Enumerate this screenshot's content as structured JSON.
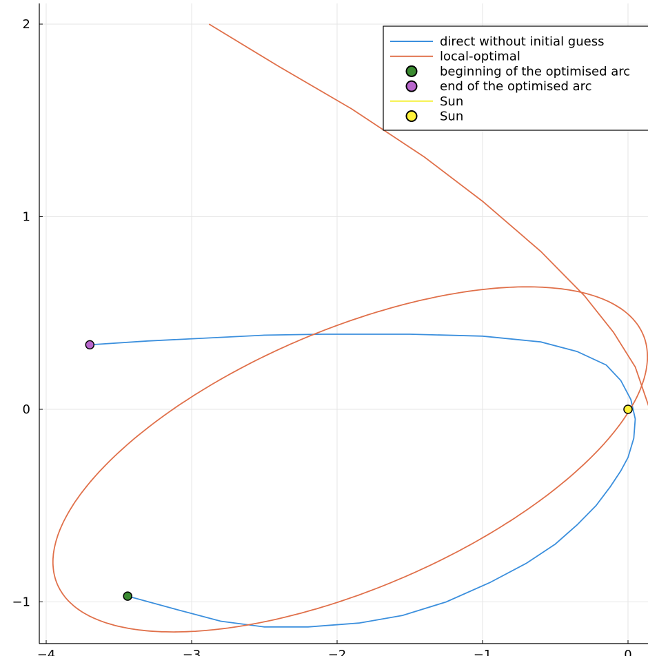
{
  "chart_data": {
    "type": "line",
    "title": "",
    "xlabel": "",
    "ylabel": "",
    "xlim": [
      -4.05,
      0.15
    ],
    "ylim": [
      -1.22,
      2.1
    ],
    "grid": true,
    "legend_position": "top-right",
    "x_ticks": [
      {
        "value": -4,
        "label": "−4"
      },
      {
        "value": -3,
        "label": "−3"
      },
      {
        "value": -2,
        "label": "−2"
      },
      {
        "value": -1,
        "label": "−1"
      },
      {
        "value": 0,
        "label": "0"
      }
    ],
    "y_ticks": [
      {
        "value": -1,
        "label": "−1"
      },
      {
        "value": 0,
        "label": "0"
      },
      {
        "value": 1,
        "label": "1"
      },
      {
        "value": 2,
        "label": "2"
      }
    ],
    "series": [
      {
        "name": "direct without initial guess",
        "kind": "line",
        "color": "#3b8fdd",
        "points": [
          [
            -3.7,
            0.335
          ],
          [
            -3.3,
            0.355
          ],
          [
            -2.9,
            0.37
          ],
          [
            -2.5,
            0.385
          ],
          [
            -2.1,
            0.39
          ],
          [
            -1.5,
            0.39
          ],
          [
            -1.0,
            0.38
          ],
          [
            -0.6,
            0.35
          ],
          [
            -0.35,
            0.3
          ],
          [
            -0.15,
            0.23
          ],
          [
            -0.05,
            0.15
          ],
          [
            0.02,
            0.05
          ],
          [
            0.05,
            -0.05
          ],
          [
            0.04,
            -0.15
          ],
          [
            0.0,
            -0.25
          ],
          [
            -0.05,
            -0.32
          ],
          [
            -0.12,
            -0.4
          ],
          [
            -0.22,
            -0.5
          ],
          [
            -0.35,
            -0.6
          ],
          [
            -0.5,
            -0.7
          ],
          [
            -0.7,
            -0.8
          ],
          [
            -0.95,
            -0.9
          ],
          [
            -1.25,
            -1.0
          ],
          [
            -1.55,
            -1.07
          ],
          [
            -1.85,
            -1.11
          ],
          [
            -2.2,
            -1.13
          ],
          [
            -2.5,
            -1.13
          ],
          [
            -2.8,
            -1.1
          ],
          [
            -3.1,
            -1.04
          ],
          [
            -3.44,
            -0.97
          ]
        ]
      },
      {
        "name": "local-optimal",
        "kind": "parametric",
        "color": "#e0704a",
        "orbit": {
          "a": 2.04,
          "c": -1.91,
          "b_major_y": 0.49,
          "b_minor_x": 0.12,
          "b_minor_y": 0.75
        },
        "arc": [
          [
            -2.88,
            2.0
          ],
          [
            -2.4,
            1.78
          ],
          [
            -1.9,
            1.56
          ],
          [
            -1.4,
            1.31
          ],
          [
            -1.0,
            1.08
          ],
          [
            -0.6,
            0.82
          ],
          [
            -0.3,
            0.59
          ],
          [
            -0.1,
            0.4
          ],
          [
            0.05,
            0.22
          ],
          [
            0.15,
            0.0
          ]
        ]
      },
      {
        "name": "beginning of the optimised arc",
        "kind": "marker",
        "color": "#3a8a30",
        "points": [
          [
            -3.44,
            -0.97
          ]
        ]
      },
      {
        "name": "end of the optimised arc",
        "kind": "marker",
        "color": "#b866cc",
        "points": [
          [
            -3.7,
            0.335
          ]
        ]
      },
      {
        "name": "Sun",
        "kind": "line",
        "color": "#f5f03a",
        "points": []
      },
      {
        "name": "Sun",
        "kind": "marker",
        "color": "#fff23a",
        "points": [
          [
            0.0,
            0.0
          ]
        ]
      }
    ]
  }
}
